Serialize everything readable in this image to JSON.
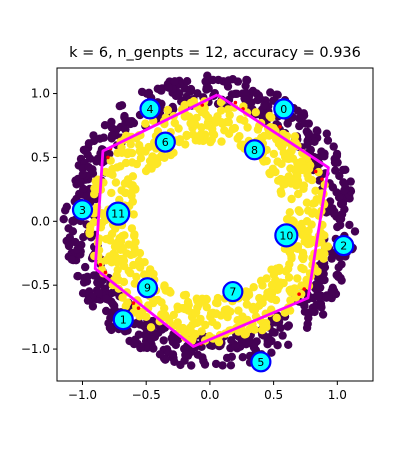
{
  "chart_data": {
    "type": "scatter",
    "title": "k = 6, n_genpts = 12, accuracy = 0.936",
    "xlabel": "",
    "ylabel": "",
    "xlim": [
      -1.2,
      1.28
    ],
    "ylim": [
      -1.25,
      1.2
    ],
    "xticks": [
      -1.0,
      -0.5,
      0.0,
      0.5,
      1.0
    ],
    "xtick_labels": [
      "−1.0",
      "−0.5",
      "0.0",
      "0.5",
      "1.0"
    ],
    "yticks": [
      1.0,
      0.5,
      0.0,
      -0.5,
      -1.0
    ],
    "ytick_labels": [
      "1.0",
      "0.5",
      "0.0",
      "−0.5",
      "−1.0"
    ],
    "grid": false,
    "legend": "none",
    "colors": {
      "outer_class": "#440154",
      "inner_class": "#fde725",
      "misclassified": "#ff0000",
      "boundary": "#ff00ff",
      "generator_fill": "#00ffff",
      "generator_edge": "#0000ff"
    },
    "series": [
      {
        "class": "outer",
        "description_visible": "purple points distributed in an annulus, radius ~0.9 to ~1.15",
        "r_range": [
          0.9,
          1.15
        ],
        "count_estimate": 650
      },
      {
        "class": "inner",
        "description_visible": "yellow points distributed in an annulus, radius ~0.6 to ~0.95",
        "r_range": [
          0.6,
          0.95
        ],
        "count_estimate": 650
      }
    ],
    "decision_boundary": [
      [
        0.06,
        0.99
      ],
      [
        0.93,
        0.42
      ],
      [
        0.77,
        -0.6
      ],
      [
        -0.13,
        -0.98
      ],
      [
        -0.9,
        -0.37
      ],
      [
        -0.84,
        0.55
      ],
      [
        0.06,
        0.99
      ]
    ],
    "generator_points": [
      {
        "label": "0",
        "x": 0.58,
        "y": 0.88
      },
      {
        "label": "1",
        "x": -0.68,
        "y": -0.77
      },
      {
        "label": "2",
        "x": 1.05,
        "y": -0.19
      },
      {
        "label": "3",
        "x": -1.0,
        "y": 0.09
      },
      {
        "label": "4",
        "x": -0.47,
        "y": 0.88
      },
      {
        "label": "5",
        "x": 0.4,
        "y": -1.1
      },
      {
        "label": "6",
        "x": -0.35,
        "y": 0.62
      },
      {
        "label": "7",
        "x": 0.18,
        "y": -0.55
      },
      {
        "label": "8",
        "x": 0.35,
        "y": 0.56
      },
      {
        "label": "9",
        "x": -0.49,
        "y": -0.52
      },
      {
        "label": "10",
        "x": 0.6,
        "y": -0.11
      },
      {
        "label": "11",
        "x": -0.72,
        "y": 0.06
      }
    ],
    "misclassified_points": [
      [
        0.26,
        0.88
      ],
      [
        0.2,
        0.93
      ],
      [
        -0.06,
        0.91
      ],
      [
        -0.8,
        0.5
      ],
      [
        -0.78,
        0.57
      ],
      [
        0.83,
        0.39
      ],
      [
        0.88,
        0.33
      ],
      [
        -0.86,
        -0.34
      ],
      [
        -0.82,
        -0.4
      ],
      [
        -0.6,
        -0.64
      ],
      [
        -0.56,
        -0.68
      ],
      [
        0.7,
        -0.57
      ],
      [
        0.74,
        -0.53
      ],
      [
        -0.07,
        -0.96
      ],
      [
        0.55,
        0.74
      ]
    ]
  }
}
